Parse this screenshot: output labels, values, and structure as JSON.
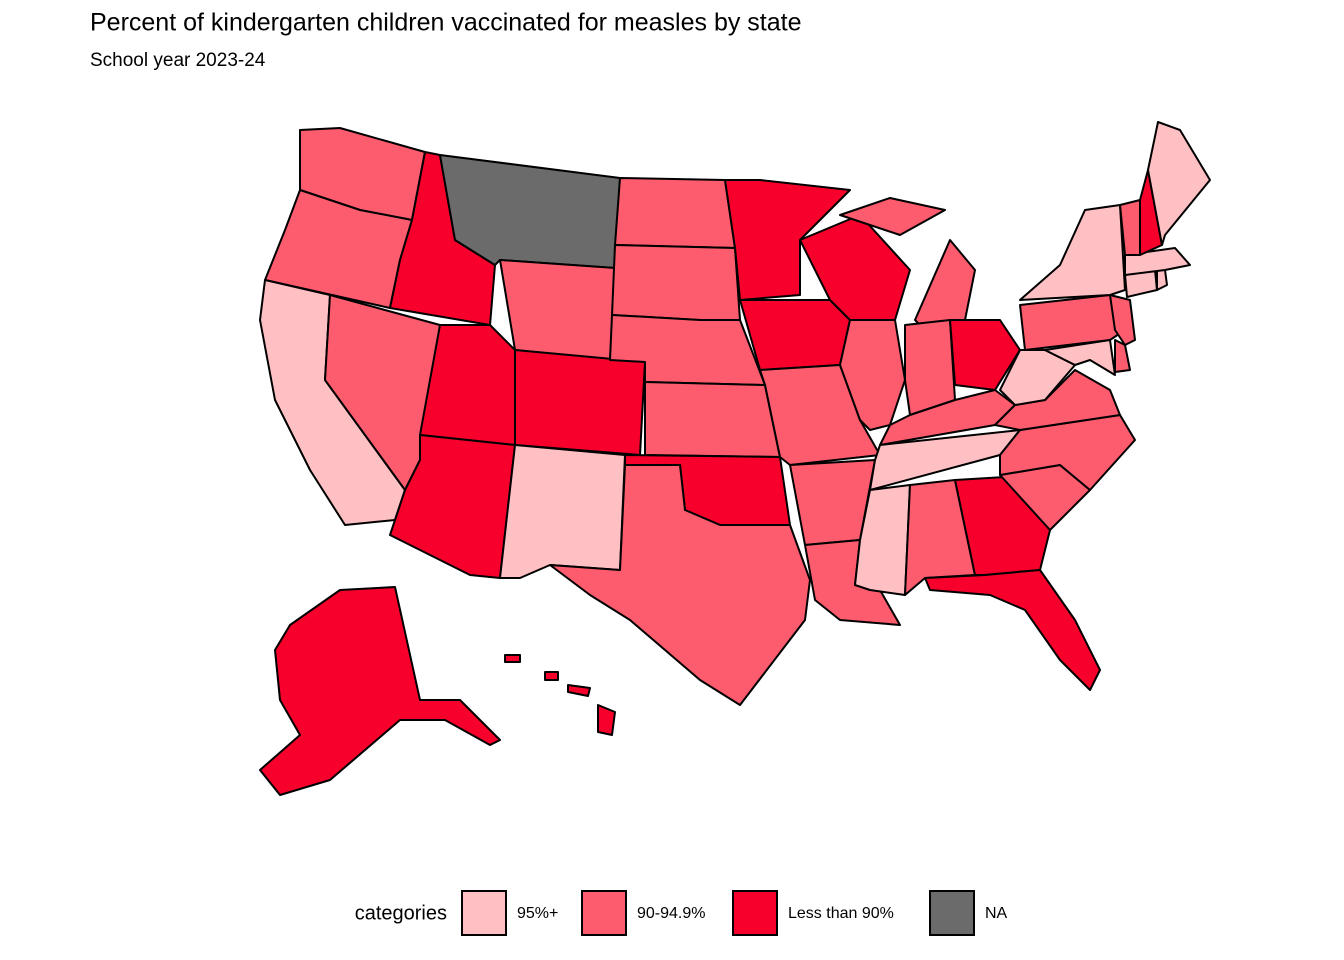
{
  "title": "Percent of kindergarten children vaccinated for measles by state",
  "subtitle": "School year 2023-24",
  "legend": {
    "title": "categories",
    "items": [
      {
        "label": "95%+",
        "color": "#ffc0c4"
      },
      {
        "label": "90-94.9%",
        "color": "#fd5c6e"
      },
      {
        "label": "Less than 90%",
        "color": "#f7002b"
      },
      {
        "label": "NA",
        "color": "#6b6b6b"
      }
    ]
  },
  "regions": [
    1,
    1,
    0,
    1,
    2,
    3,
    1,
    2,
    2,
    2,
    0,
    1,
    1,
    1,
    1,
    2,
    1,
    2,
    2,
    1,
    1,
    1,
    2,
    1,
    1,
    1,
    2,
    1,
    0,
    0,
    1,
    2,
    2,
    1,
    1,
    1,
    0,
    1,
    0,
    0,
    1,
    1,
    0,
    0,
    0,
    1,
    2,
    0,
    2,
    2
  ]
}
